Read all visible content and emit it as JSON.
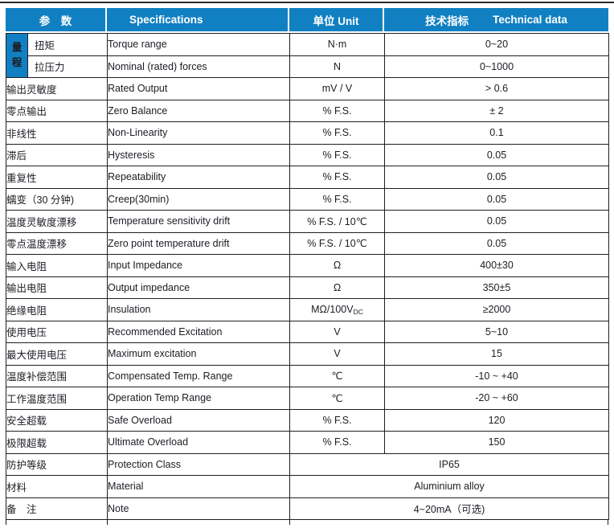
{
  "page": {
    "accent_blue": "#1180c2",
    "border_color": "#1f1f1f",
    "text_color": "#1c1c24"
  },
  "table": {
    "headers": {
      "param": "参　数",
      "spec": "Specifications",
      "unit": "单位 Unit",
      "tech_cn": "技术指标",
      "tech_en": "Technical data"
    },
    "range_group_chars": [
      "量",
      "程"
    ],
    "rows": [
      {
        "param": "扭矩",
        "spec": "Torque range",
        "unit": "N·m",
        "value": "0~20",
        "group": "range"
      },
      {
        "param": "拉压力",
        "spec": "Nominal (rated) forces",
        "unit": "N",
        "value": "0~1000",
        "group": "range"
      },
      {
        "param": "输出灵敏度",
        "spec": "Rated Output",
        "unit": "mV / V",
        "value": "> 0.6"
      },
      {
        "param": "零点输出",
        "spec": "Zero Balance",
        "unit": "% F.S.",
        "value": "± 2"
      },
      {
        "param": "非线性",
        "spec": "Non-Linearity",
        "unit": "% F.S.",
        "value": "0.1"
      },
      {
        "param": "滞后",
        "spec": "Hysteresis",
        "unit": "% F.S.",
        "value": "0.05"
      },
      {
        "param": "重复性",
        "spec": "Repeatability",
        "unit": "% F.S.",
        "value": "0.05"
      },
      {
        "param": "蠕变（30 分钟)",
        "spec": "Creep(30min)",
        "unit": "% F.S.",
        "value": "0.05"
      },
      {
        "param": "温度灵敏度漂移",
        "spec": "Temperature sensitivity drift",
        "unit": "% F.S. / 10℃",
        "value": "0.05"
      },
      {
        "param": "零点温度漂移",
        "spec": "Zero point temperature drift",
        "unit": "% F.S. / 10℃",
        "value": "0.05"
      },
      {
        "param": "输入电阻",
        "spec": "Input Impedance",
        "unit": "Ω",
        "value": "400±30"
      },
      {
        "param": "输出电阻",
        "spec": "Output impedance",
        "unit": "Ω",
        "value": "350±5"
      },
      {
        "param": "绝缘电阻",
        "spec": "Insulation",
        "unit": "MΩ/100V",
        "unit_sub": "DC",
        "value": "≥2000"
      },
      {
        "param": "使用电压",
        "spec": "Recommended Excitation",
        "unit": "V",
        "value": "5~10"
      },
      {
        "param": "最大使用电压",
        "spec": "Maximum excitation",
        "unit": "V",
        "value": "15"
      },
      {
        "param": "温度补偿范围",
        "spec": "Compensated Temp. Range",
        "unit": "℃",
        "value": "-10 ~ +40"
      },
      {
        "param": "工作温度范围",
        "spec": "Operation Temp Range",
        "unit": "℃",
        "value": "-20 ~ +60"
      },
      {
        "param": "安全超载",
        "spec": "Safe Overload",
        "unit": "% F.S.",
        "value": "120"
      },
      {
        "param": "极限超载",
        "spec": "Ultimate Overload",
        "unit": "% F.S.",
        "value": "150"
      },
      {
        "param": "防护等级",
        "spec": "Protection Class",
        "merged": true,
        "value": "IP65"
      },
      {
        "param": "材料",
        "spec": "Material",
        "merged": true,
        "value": "Aluminium alloy"
      },
      {
        "param": "备　注",
        "spec": "Note",
        "merged": true,
        "value": "4~20mA（可选)"
      }
    ]
  }
}
